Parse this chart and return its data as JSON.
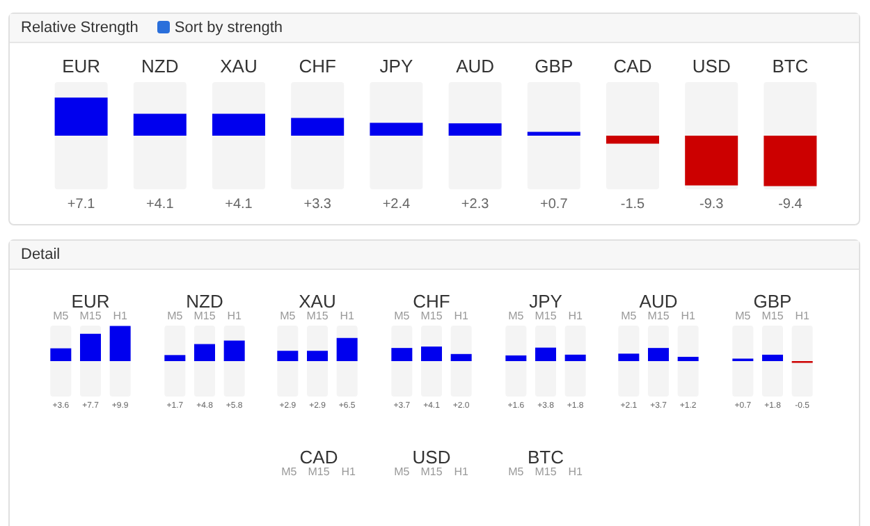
{
  "chart_data": [
    {
      "type": "bar",
      "title": "Relative Strength",
      "annotations": [
        "Sort by strength"
      ],
      "categories": [
        "EUR",
        "NZD",
        "XAU",
        "CHF",
        "JPY",
        "AUD",
        "GBP",
        "CAD",
        "USD",
        "BTC"
      ],
      "values": [
        7.1,
        4.1,
        4.1,
        3.3,
        2.4,
        2.3,
        0.7,
        -1.5,
        -9.3,
        -9.4
      ],
      "colors": [
        "#0000ee",
        "#0000ee",
        "#0000ee",
        "#0000ee",
        "#0000ee",
        "#0000ee",
        "#0000ee",
        "#cc0000",
        "#cc0000",
        "#cc0000"
      ],
      "value_labels": [
        "+7.1",
        "+4.1",
        "+4.1",
        "+3.3",
        "+2.4",
        "+2.3",
        "+0.7",
        "-1.5",
        "-9.3",
        "-9.4"
      ],
      "ylim": [
        -10,
        10
      ]
    },
    {
      "type": "bar",
      "title": "EUR",
      "annotations": [
        "Detail"
      ],
      "categories": [
        "M5",
        "M15",
        "H1"
      ],
      "values": [
        3.6,
        7.7,
        9.9
      ],
      "colors": [
        "#0000ee",
        "#0000ee",
        "#0000ee"
      ],
      "value_labels": [
        "+3.6",
        "+7.7",
        "+9.9"
      ],
      "ylim": [
        -10,
        10
      ]
    },
    {
      "type": "bar",
      "title": "NZD",
      "categories": [
        "M5",
        "M15",
        "H1"
      ],
      "values": [
        1.7,
        4.8,
        5.8
      ],
      "colors": [
        "#0000ee",
        "#0000ee",
        "#0000ee"
      ],
      "value_labels": [
        "+1.7",
        "+4.8",
        "+5.8"
      ],
      "ylim": [
        -10,
        10
      ]
    },
    {
      "type": "bar",
      "title": "XAU",
      "categories": [
        "M5",
        "M15",
        "H1"
      ],
      "values": [
        2.9,
        2.9,
        6.5
      ],
      "colors": [
        "#0000ee",
        "#0000ee",
        "#0000ee"
      ],
      "value_labels": [
        "+2.9",
        "+2.9",
        "+6.5"
      ],
      "ylim": [
        -10,
        10
      ]
    },
    {
      "type": "bar",
      "title": "CHF",
      "categories": [
        "M5",
        "M15",
        "H1"
      ],
      "values": [
        3.7,
        4.1,
        2.0
      ],
      "colors": [
        "#0000ee",
        "#0000ee",
        "#0000ee"
      ],
      "value_labels": [
        "+3.7",
        "+4.1",
        "+2.0"
      ],
      "ylim": [
        -10,
        10
      ]
    },
    {
      "type": "bar",
      "title": "JPY",
      "categories": [
        "M5",
        "M15",
        "H1"
      ],
      "values": [
        1.6,
        3.8,
        1.8
      ],
      "colors": [
        "#0000ee",
        "#0000ee",
        "#0000ee"
      ],
      "value_labels": [
        "+1.6",
        "+3.8",
        "+1.8"
      ],
      "ylim": [
        -10,
        10
      ]
    },
    {
      "type": "bar",
      "title": "AUD",
      "categories": [
        "M5",
        "M15",
        "H1"
      ],
      "values": [
        2.1,
        3.7,
        1.2
      ],
      "colors": [
        "#0000ee",
        "#0000ee",
        "#0000ee"
      ],
      "value_labels": [
        "+2.1",
        "+3.7",
        "+1.2"
      ],
      "ylim": [
        -10,
        10
      ]
    },
    {
      "type": "bar",
      "title": "GBP",
      "categories": [
        "M5",
        "M15",
        "H1"
      ],
      "values": [
        0.7,
        1.8,
        -0.5
      ],
      "colors": [
        "#0000ee",
        "#0000ee",
        "#cc0000"
      ],
      "value_labels": [
        "+0.7",
        "+1.8",
        "-0.5"
      ],
      "ylim": [
        -10,
        10
      ]
    },
    {
      "type": "other",
      "title": "CAD",
      "categories": [
        "M5",
        "M15",
        "H1"
      ]
    },
    {
      "type": "other",
      "title": "USD",
      "categories": [
        "M5",
        "M15",
        "H1"
      ]
    },
    {
      "type": "other",
      "title": "BTC",
      "categories": [
        "M5",
        "M15",
        "H1"
      ]
    }
  ]
}
